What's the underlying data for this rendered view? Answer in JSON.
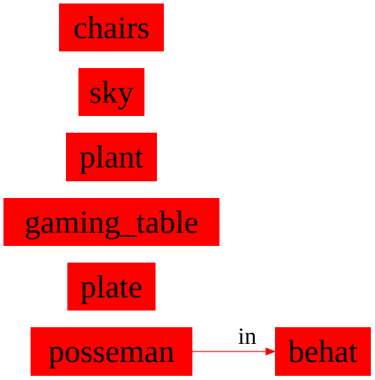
{
  "colors": {
    "node_fill": "#ff0000",
    "edge": "#ff0000",
    "text": "#000000"
  },
  "nodes": {
    "chairs": "chairs",
    "sky": "sky",
    "plant": "plant",
    "gaming_table": "gaming_table",
    "plate": "plate",
    "posseman": "posseman",
    "behat": "behat"
  },
  "edges": [
    {
      "from": "posseman",
      "to": "behat",
      "label": "in"
    }
  ]
}
